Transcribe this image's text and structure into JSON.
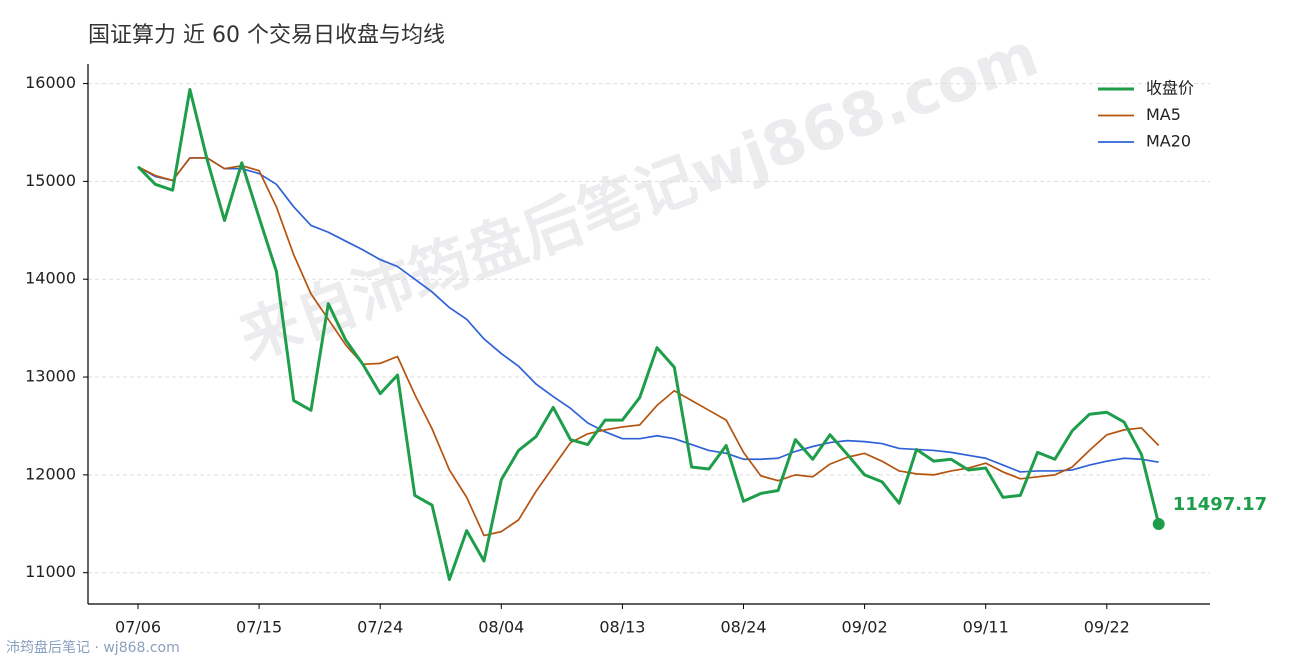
{
  "chart_data": {
    "type": "line",
    "title": "国证算力 近 60 个交易日收盘与均线",
    "watermark": "来自沛筠盘后笔记wj868.com",
    "footer": "沛筠盘后笔记 · wj868.com",
    "categories": [
      "07/06",
      null,
      null,
      null,
      null,
      null,
      null,
      "07/15",
      null,
      null,
      null,
      null,
      null,
      null,
      "07/24",
      null,
      null,
      null,
      null,
      null,
      null,
      "08/04",
      null,
      null,
      null,
      null,
      null,
      null,
      "08/13",
      null,
      null,
      null,
      null,
      null,
      null,
      "08/24",
      null,
      null,
      null,
      null,
      null,
      null,
      "09/02",
      null,
      null,
      null,
      null,
      null,
      null,
      "09/11",
      null,
      null,
      null,
      null,
      null,
      null,
      "09/22",
      null,
      null,
      null
    ],
    "series": [
      {
        "name": "收盘价",
        "color": "#1e9e4a",
        "values": [
          15150,
          14970,
          14910,
          15940,
          15220,
          14600,
          15190,
          14630,
          14080,
          12760,
          12660,
          13750,
          13380,
          13130,
          12830,
          13020,
          11790,
          11690,
          10930,
          11430,
          11120,
          11950,
          12250,
          12390,
          12690,
          12360,
          12310,
          12560,
          12560,
          12790,
          13300,
          13100,
          12080,
          12060,
          12300,
          11730,
          11810,
          11840,
          12360,
          12160,
          12410,
          12210,
          12000,
          11930,
          11710,
          12260,
          12140,
          12160,
          12050,
          12070,
          11770,
          11790,
          12230,
          12160,
          12450,
          12620,
          12640,
          12540,
          12210,
          11497.17
        ]
      },
      {
        "name": "MA5",
        "color": "#b5540e",
        "values": [
          15150,
          15060,
          15010,
          15240,
          15240,
          15130,
          15160,
          15110,
          14740,
          14250,
          13850,
          13590,
          13330,
          13130,
          13140,
          13210,
          12820,
          12470,
          12050,
          11770,
          11380,
          11420,
          11540,
          11830,
          12080,
          12330,
          12420,
          12460,
          12490,
          12510,
          12710,
          12860,
          12760,
          12660,
          12560,
          12230,
          11990,
          11940,
          12000,
          11980,
          12110,
          12180,
          12220,
          12140,
          12040,
          12010,
          12000,
          12040,
          12070,
          12120,
          12030,
          11960,
          11980,
          12000,
          12080,
          12250,
          12410,
          12460,
          12480,
          12300
        ]
      },
      {
        "name": "MA20",
        "color": "#2f62d6",
        "values": [
          15150,
          15050,
          15010,
          15240,
          15240,
          15130,
          15130,
          15080,
          14970,
          14740,
          14550,
          14480,
          14390,
          14300,
          14200,
          14130,
          14000,
          13870,
          13710,
          13590,
          13390,
          13240,
          13110,
          12930,
          12800,
          12680,
          12530,
          12440,
          12370,
          12370,
          12400,
          12370,
          12310,
          12250,
          12220,
          12160,
          12160,
          12170,
          12240,
          12290,
          12330,
          12350,
          12340,
          12320,
          12270,
          12260,
          12250,
          12230,
          12200,
          12170,
          12100,
          12030,
          12040,
          12040,
          12050,
          12100,
          12140,
          12170,
          12160,
          12130
        ]
      }
    ],
    "ylim": [
      10680,
      16200
    ],
    "yticks": [
      11000,
      12000,
      13000,
      14000,
      15000,
      16000
    ],
    "grid": true,
    "legend": "upper right"
  }
}
